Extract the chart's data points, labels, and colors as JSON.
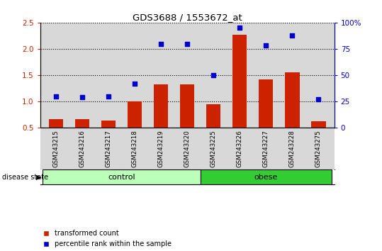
{
  "title": "GDS3688 / 1553672_at",
  "samples": [
    "GSM243215",
    "GSM243216",
    "GSM243217",
    "GSM243218",
    "GSM243219",
    "GSM243220",
    "GSM243225",
    "GSM243226",
    "GSM243227",
    "GSM243228",
    "GSM243275"
  ],
  "transformed_count": [
    0.67,
    0.67,
    0.63,
    1.0,
    1.33,
    1.33,
    0.95,
    2.27,
    1.42,
    1.55,
    0.62
  ],
  "percentile_rank": [
    30,
    29,
    30,
    42,
    80,
    80,
    50,
    95,
    78,
    88,
    27
  ],
  "bar_color": "#cc2200",
  "dot_color": "#0000cc",
  "ylim_left": [
    0.5,
    2.5
  ],
  "ylim_right": [
    0,
    100
  ],
  "yticks_left": [
    0.5,
    1.0,
    1.5,
    2.0,
    2.5
  ],
  "yticks_right": [
    0,
    25,
    50,
    75,
    100
  ],
  "groups": [
    {
      "label": "control",
      "start": 0,
      "end": 5,
      "color": "#bbffbb",
      "edgecolor": "#000000"
    },
    {
      "label": "obese",
      "start": 6,
      "end": 10,
      "color": "#33cc33",
      "edgecolor": "#000000"
    }
  ],
  "disease_state_label": "disease state",
  "legend_bar_label": "transformed count",
  "legend_dot_label": "percentile rank within the sample",
  "background_color": "#ffffff",
  "plot_bg_color": "#d8d8d8",
  "grid_color": "#000000"
}
